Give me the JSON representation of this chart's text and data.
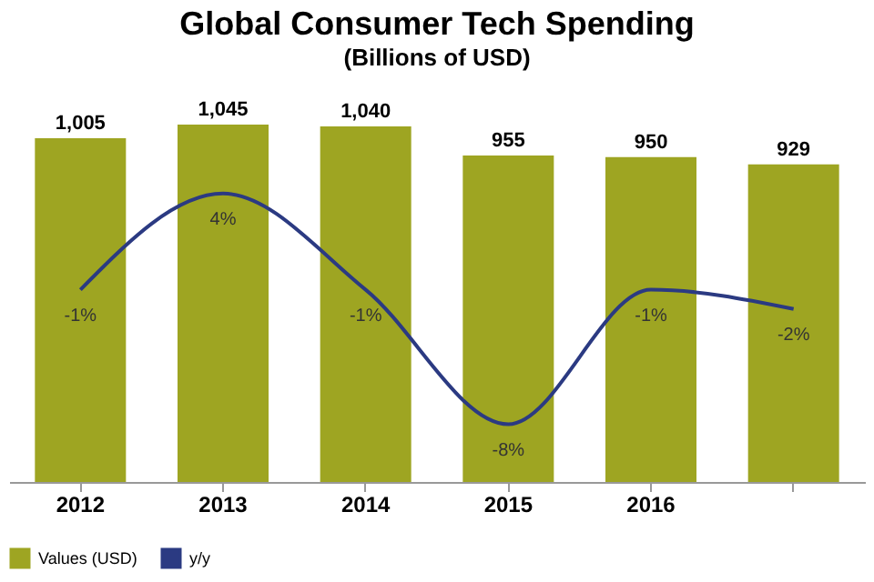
{
  "chart_data": {
    "type": "bar",
    "title": "Global Consumer Tech Spending",
    "subtitle": "(Billions of USD)",
    "categories": [
      "2012",
      "2013",
      "2014",
      "2015",
      "2016",
      null
    ],
    "series": [
      {
        "name": "Values (USD)",
        "color": "#9ea522",
        "values": [
          1005,
          1045,
          1040,
          955,
          950,
          929
        ],
        "value_labels": [
          "1,005",
          "1,045",
          "1,040",
          "955",
          "950",
          "929"
        ]
      },
      {
        "name": "y/y",
        "type": "line",
        "axis": "y2",
        "color": "#2b3a82",
        "values": [
          -1,
          4,
          -1,
          -8,
          -1,
          -2
        ],
        "value_labels": [
          "-1%",
          "4%",
          "-1%",
          "-8%",
          "-1%",
          "-2%"
        ]
      }
    ],
    "legend": "bottom",
    "grid": false
  }
}
